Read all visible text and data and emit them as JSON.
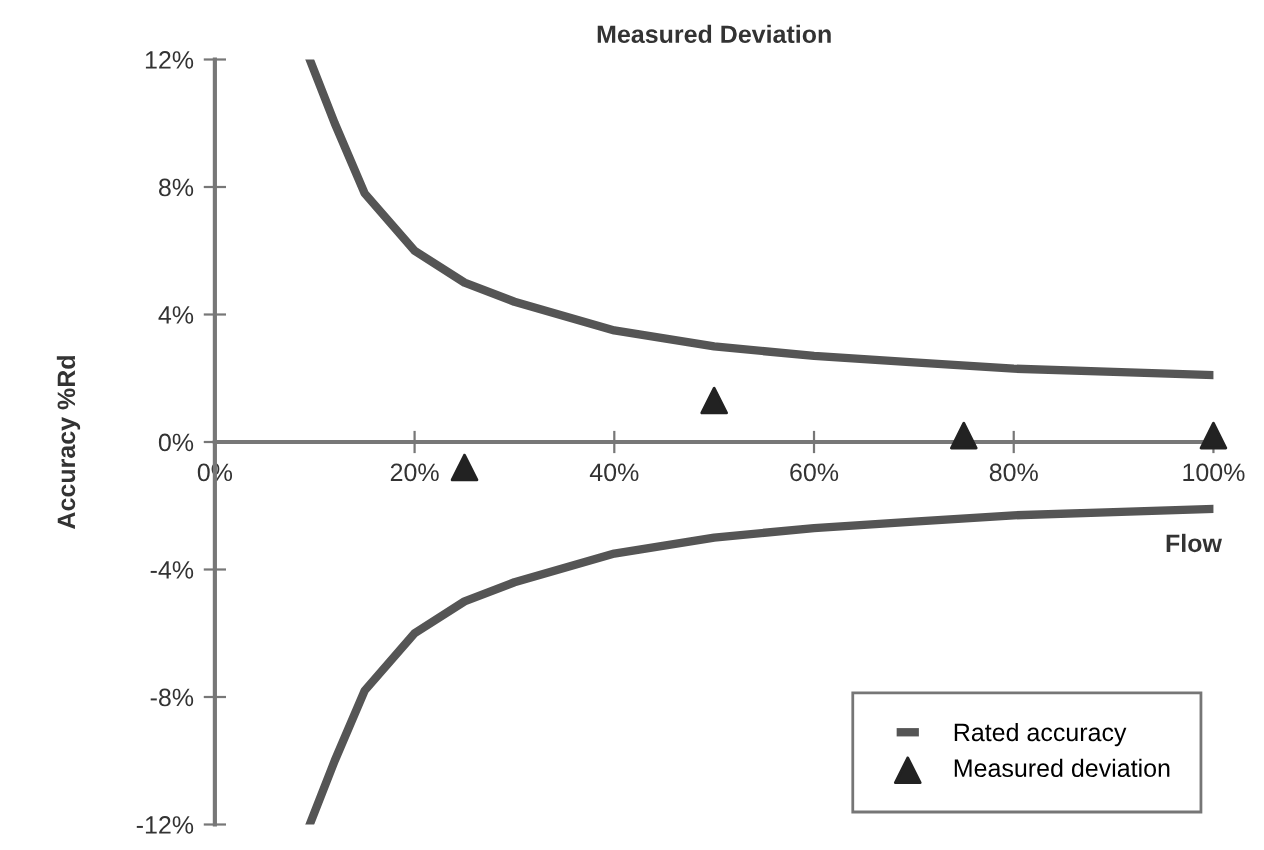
{
  "chart_data": {
    "type": "line",
    "title": "Measured Deviation",
    "xlabel": "Flow",
    "ylabel": "Accuracy %Rd",
    "xlim": [
      0,
      100
    ],
    "ylim": [
      -12,
      12
    ],
    "xticks": [
      {
        "value": 0,
        "label": "0%"
      },
      {
        "value": 20,
        "label": "20%"
      },
      {
        "value": 40,
        "label": "40%"
      },
      {
        "value": 60,
        "label": "60%"
      },
      {
        "value": 80,
        "label": "80%"
      },
      {
        "value": 100,
        "label": "100%"
      }
    ],
    "yticks": [
      {
        "value": 12,
        "label": "12%"
      },
      {
        "value": 8,
        "label": "8%"
      },
      {
        "value": 4,
        "label": "4%"
      },
      {
        "value": 0,
        "label": "0%"
      },
      {
        "value": -4,
        "label": "-4%"
      },
      {
        "value": -8,
        "label": "-8%"
      },
      {
        "value": -12,
        "label": "-12%"
      }
    ],
    "grid": false,
    "legend": "bottom right",
    "series": [
      {
        "name": "Rated accuracy",
        "color": "#555555",
        "x": [
          9.5,
          12,
          15,
          20,
          25,
          30,
          40,
          50,
          60,
          70,
          80,
          90,
          100
        ],
        "values": [
          12,
          10,
          7.8,
          6.0,
          5.0,
          4.4,
          3.5,
          3.0,
          2.7,
          2.5,
          2.3,
          2.2,
          2.1
        ]
      },
      {
        "color": "#555555",
        "x": [
          9.5,
          12,
          15,
          20,
          25,
          30,
          40,
          50,
          60,
          70,
          80,
          90,
          100
        ],
        "values": [
          -12,
          -10,
          -7.8,
          -6.0,
          -5.0,
          -4.4,
          -3.5,
          -3.0,
          -2.7,
          -2.5,
          -2.3,
          -2.2,
          -2.1
        ]
      },
      {
        "name": "Measured deviation",
        "type": "scatter",
        "marker": "triangle",
        "color": "#222222",
        "x": [
          25,
          50,
          75,
          100
        ],
        "values": [
          -0.8,
          1.3,
          0.2,
          0.2
        ]
      }
    ]
  }
}
